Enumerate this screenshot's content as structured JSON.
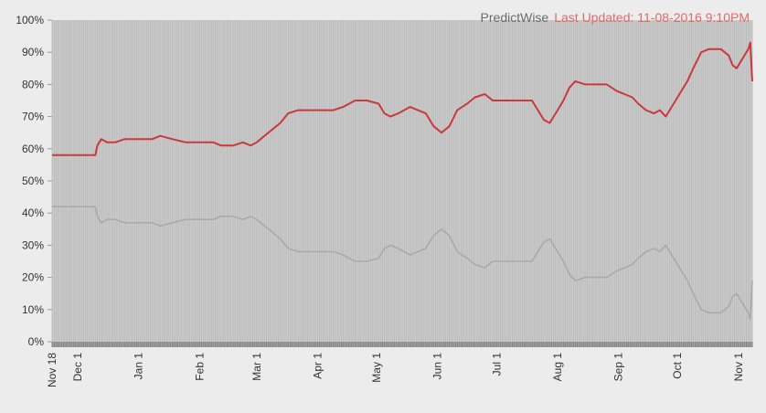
{
  "header": {
    "source": "PredictWise",
    "updated": "Last Updated: 11-08-2016 9:10PM"
  },
  "colors": {
    "plot_background": "#cccccc",
    "series_red": "#c9393e",
    "series_gray": "#aaaaaa",
    "updated_text": "#e06a6a",
    "source_text": "#6b6b6b"
  },
  "chart_data": {
    "type": "line",
    "title": "",
    "xlabel": "",
    "ylabel": "",
    "ylim": [
      0,
      100
    ],
    "xlim": [
      "2015-11-18",
      "2016-11-08"
    ],
    "y_ticks": [
      "0%",
      "10%",
      "20%",
      "30%",
      "40%",
      "50%",
      "60%",
      "70%",
      "80%",
      "90%",
      "100%"
    ],
    "x_ticks": [
      {
        "date": "2015-11-18",
        "label": "Nov 18"
      },
      {
        "date": "2015-12-01",
        "label": "Dec 1"
      },
      {
        "date": "2016-01-01",
        "label": "Jan 1"
      },
      {
        "date": "2016-02-01",
        "label": "Feb 1"
      },
      {
        "date": "2016-03-01",
        "label": "Mar 1"
      },
      {
        "date": "2016-04-01",
        "label": "Apr 1"
      },
      {
        "date": "2016-05-01",
        "label": "May 1"
      },
      {
        "date": "2016-06-01",
        "label": "Jun 1"
      },
      {
        "date": "2016-07-01",
        "label": "Jul 1"
      },
      {
        "date": "2016-08-01",
        "label": "Aug 1"
      },
      {
        "date": "2016-09-01",
        "label": "Sep 1"
      },
      {
        "date": "2016-10-01",
        "label": "Oct 1"
      },
      {
        "date": "2016-11-01",
        "label": "Nov 1"
      }
    ],
    "grid": "vertical daily lines",
    "series": [
      {
        "color": "#c9393e",
        "points": [
          [
            "2015-11-18",
            58
          ],
          [
            "2015-12-10",
            58
          ],
          [
            "2015-12-11",
            61
          ],
          [
            "2015-12-13",
            63
          ],
          [
            "2015-12-16",
            62
          ],
          [
            "2015-12-20",
            62
          ],
          [
            "2015-12-25",
            63
          ],
          [
            "2016-01-01",
            63
          ],
          [
            "2016-01-08",
            63
          ],
          [
            "2016-01-12",
            64
          ],
          [
            "2016-01-18",
            63
          ],
          [
            "2016-01-25",
            62
          ],
          [
            "2016-02-01",
            62
          ],
          [
            "2016-02-08",
            62
          ],
          [
            "2016-02-12",
            61
          ],
          [
            "2016-02-18",
            61
          ],
          [
            "2016-02-23",
            62
          ],
          [
            "2016-02-27",
            61
          ],
          [
            "2016-03-01",
            62
          ],
          [
            "2016-03-05",
            64
          ],
          [
            "2016-03-09",
            66
          ],
          [
            "2016-03-13",
            68
          ],
          [
            "2016-03-17",
            71
          ],
          [
            "2016-03-22",
            72
          ],
          [
            "2016-03-28",
            72
          ],
          [
            "2016-04-03",
            72
          ],
          [
            "2016-04-09",
            72
          ],
          [
            "2016-04-14",
            73
          ],
          [
            "2016-04-20",
            75
          ],
          [
            "2016-04-26",
            75
          ],
          [
            "2016-05-02",
            74
          ],
          [
            "2016-05-05",
            71
          ],
          [
            "2016-05-08",
            70
          ],
          [
            "2016-05-12",
            71
          ],
          [
            "2016-05-18",
            73
          ],
          [
            "2016-05-22",
            72
          ],
          [
            "2016-05-26",
            71
          ],
          [
            "2016-05-30",
            67
          ],
          [
            "2016-06-03",
            65
          ],
          [
            "2016-06-07",
            67
          ],
          [
            "2016-06-11",
            72
          ],
          [
            "2016-06-16",
            74
          ],
          [
            "2016-06-20",
            76
          ],
          [
            "2016-06-25",
            77
          ],
          [
            "2016-06-29",
            75
          ],
          [
            "2016-07-04",
            75
          ],
          [
            "2016-07-09",
            75
          ],
          [
            "2016-07-14",
            75
          ],
          [
            "2016-07-19",
            75
          ],
          [
            "2016-07-22",
            72
          ],
          [
            "2016-07-25",
            69
          ],
          [
            "2016-07-28",
            68
          ],
          [
            "2016-08-01",
            72
          ],
          [
            "2016-08-04",
            75
          ],
          [
            "2016-08-07",
            79
          ],
          [
            "2016-08-10",
            81
          ],
          [
            "2016-08-15",
            80
          ],
          [
            "2016-08-20",
            80
          ],
          [
            "2016-08-26",
            80
          ],
          [
            "2016-08-31",
            78
          ],
          [
            "2016-09-04",
            77
          ],
          [
            "2016-09-08",
            76
          ],
          [
            "2016-09-11",
            74
          ],
          [
            "2016-09-15",
            72
          ],
          [
            "2016-09-19",
            71
          ],
          [
            "2016-09-22",
            72
          ],
          [
            "2016-09-25",
            70
          ],
          [
            "2016-09-27",
            72
          ],
          [
            "2016-09-30",
            75
          ],
          [
            "2016-10-03",
            78
          ],
          [
            "2016-10-06",
            81
          ],
          [
            "2016-10-09",
            85
          ],
          [
            "2016-10-13",
            90
          ],
          [
            "2016-10-17",
            91
          ],
          [
            "2016-10-23",
            91
          ],
          [
            "2016-10-27",
            89
          ],
          [
            "2016-10-29",
            86
          ],
          [
            "2016-10-31",
            85
          ],
          [
            "2016-11-02",
            87
          ],
          [
            "2016-11-04",
            89
          ],
          [
            "2016-11-06",
            91
          ],
          [
            "2016-11-07",
            93
          ],
          [
            "2016-11-08",
            81
          ]
        ]
      },
      {
        "color": "#aaaaaa",
        "points": [
          [
            "2015-11-18",
            42
          ],
          [
            "2015-12-10",
            42
          ],
          [
            "2015-12-11",
            39
          ],
          [
            "2015-12-13",
            37
          ],
          [
            "2015-12-16",
            38
          ],
          [
            "2015-12-20",
            38
          ],
          [
            "2015-12-25",
            37
          ],
          [
            "2016-01-01",
            37
          ],
          [
            "2016-01-08",
            37
          ],
          [
            "2016-01-12",
            36
          ],
          [
            "2016-01-18",
            37
          ],
          [
            "2016-01-25",
            38
          ],
          [
            "2016-02-01",
            38
          ],
          [
            "2016-02-08",
            38
          ],
          [
            "2016-02-12",
            39
          ],
          [
            "2016-02-18",
            39
          ],
          [
            "2016-02-23",
            38
          ],
          [
            "2016-02-27",
            39
          ],
          [
            "2016-03-01",
            38
          ],
          [
            "2016-03-05",
            36
          ],
          [
            "2016-03-09",
            34
          ],
          [
            "2016-03-13",
            32
          ],
          [
            "2016-03-17",
            29
          ],
          [
            "2016-03-22",
            28
          ],
          [
            "2016-03-28",
            28
          ],
          [
            "2016-04-03",
            28
          ],
          [
            "2016-04-09",
            28
          ],
          [
            "2016-04-14",
            27
          ],
          [
            "2016-04-20",
            25
          ],
          [
            "2016-04-26",
            25
          ],
          [
            "2016-05-02",
            26
          ],
          [
            "2016-05-05",
            29
          ],
          [
            "2016-05-08",
            30
          ],
          [
            "2016-05-12",
            29
          ],
          [
            "2016-05-18",
            27
          ],
          [
            "2016-05-22",
            28
          ],
          [
            "2016-05-26",
            29
          ],
          [
            "2016-05-30",
            33
          ],
          [
            "2016-06-03",
            35
          ],
          [
            "2016-06-07",
            33
          ],
          [
            "2016-06-11",
            28
          ],
          [
            "2016-06-16",
            26
          ],
          [
            "2016-06-20",
            24
          ],
          [
            "2016-06-25",
            23
          ],
          [
            "2016-06-29",
            25
          ],
          [
            "2016-07-04",
            25
          ],
          [
            "2016-07-09",
            25
          ],
          [
            "2016-07-14",
            25
          ],
          [
            "2016-07-19",
            25
          ],
          [
            "2016-07-22",
            28
          ],
          [
            "2016-07-25",
            31
          ],
          [
            "2016-07-28",
            32
          ],
          [
            "2016-08-01",
            28
          ],
          [
            "2016-08-04",
            25
          ],
          [
            "2016-08-07",
            21
          ],
          [
            "2016-08-10",
            19
          ],
          [
            "2016-08-15",
            20
          ],
          [
            "2016-08-20",
            20
          ],
          [
            "2016-08-26",
            20
          ],
          [
            "2016-08-31",
            22
          ],
          [
            "2016-09-04",
            23
          ],
          [
            "2016-09-08",
            24
          ],
          [
            "2016-09-11",
            26
          ],
          [
            "2016-09-15",
            28
          ],
          [
            "2016-09-19",
            29
          ],
          [
            "2016-09-22",
            28
          ],
          [
            "2016-09-25",
            30
          ],
          [
            "2016-09-27",
            28
          ],
          [
            "2016-09-30",
            25
          ],
          [
            "2016-10-03",
            22
          ],
          [
            "2016-10-06",
            19
          ],
          [
            "2016-10-09",
            15
          ],
          [
            "2016-10-13",
            10
          ],
          [
            "2016-10-17",
            9
          ],
          [
            "2016-10-23",
            9
          ],
          [
            "2016-10-27",
            11
          ],
          [
            "2016-10-29",
            14
          ],
          [
            "2016-10-31",
            15
          ],
          [
            "2016-11-02",
            13
          ],
          [
            "2016-11-04",
            11
          ],
          [
            "2016-11-06",
            9
          ],
          [
            "2016-11-07",
            7
          ],
          [
            "2016-11-08",
            19
          ]
        ]
      }
    ]
  }
}
